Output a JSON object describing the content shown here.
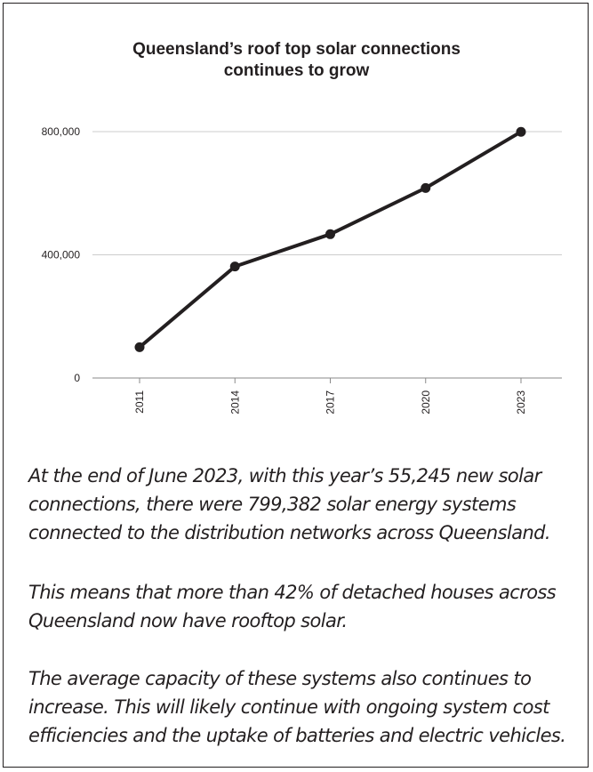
{
  "chart_data": {
    "type": "line",
    "title_lines": [
      "Queensland’s roof top solar connections",
      "continues to grow"
    ],
    "categories": [
      "2011",
      "2014",
      "2017",
      "2020",
      "2023"
    ],
    "series": [
      {
        "values": [
          100000,
          362000,
          467000,
          617000,
          799382
        ]
      }
    ],
    "ylim": [
      0,
      800000
    ],
    "yticks": [
      0,
      400000,
      800000
    ],
    "ytick_labels": [
      "0",
      "400,000",
      "800,000"
    ],
    "grid": true,
    "line_color": "#231f20",
    "grid_color": "#cccccc"
  },
  "text": {
    "paragraph1": [
      "At the end of June 2023, with this year’s 55,245 new solar",
      "connections, there were 799,382 solar energy systems",
      "connected to the distribution networks across Queensland."
    ],
    "paragraph2": [
      "This means that more than 42% of detached houses across",
      "Queensland now have rooftop solar."
    ],
    "paragraph3": [
      "The average capacity of these systems also continues to",
      "increase. This will likely continue with ongoing system cost",
      "efficiencies and the uptake of batteries and electric vehicles."
    ]
  }
}
